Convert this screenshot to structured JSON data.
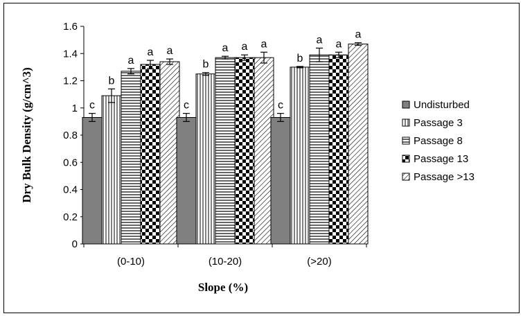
{
  "chart_data": {
    "type": "bar",
    "title": "",
    "xlabel": "Slope (%)",
    "ylabel": "Dry Bulk Density (g/cm^3)",
    "ylim": [
      0,
      1.6
    ],
    "yticks": [
      "0",
      "0.2",
      "0.4",
      "0.6",
      "0.8",
      "1",
      "1.2",
      "1.4",
      "1.6"
    ],
    "categories": [
      "(0-10)",
      "(10-20)",
      "(>20)"
    ],
    "legend_position": "right",
    "grid": false,
    "series": [
      {
        "name": "Undisturbed",
        "values": [
          0.93,
          0.93,
          0.93
        ],
        "errors": [
          0.03,
          0.03,
          0.03
        ],
        "letters": [
          "c",
          "c",
          "c"
        ],
        "pattern": "solid-gray"
      },
      {
        "name": "Passage 3",
        "values": [
          1.09,
          1.25,
          1.3
        ],
        "errors": [
          0.05,
          0.01,
          0.005
        ],
        "letters": [
          "b",
          "b",
          "b"
        ],
        "pattern": "vertical-lines"
      },
      {
        "name": "Passage 8",
        "values": [
          1.27,
          1.37,
          1.39
        ],
        "errors": [
          0.02,
          0.01,
          0.05
        ],
        "letters": [
          "a",
          "a",
          "a"
        ],
        "pattern": "horizontal-lines"
      },
      {
        "name": "Passage 13",
        "values": [
          1.32,
          1.37,
          1.39
        ],
        "errors": [
          0.03,
          0.02,
          0.02
        ],
        "letters": [
          "a",
          "a",
          "a"
        ],
        "pattern": "checkerboard"
      },
      {
        "name": "Passage >13",
        "values": [
          1.34,
          1.37,
          1.47
        ],
        "errors": [
          0.02,
          0.04,
          0.01
        ],
        "letters": [
          "a",
          "a",
          "a"
        ],
        "pattern": "diagonal-lines"
      }
    ]
  }
}
